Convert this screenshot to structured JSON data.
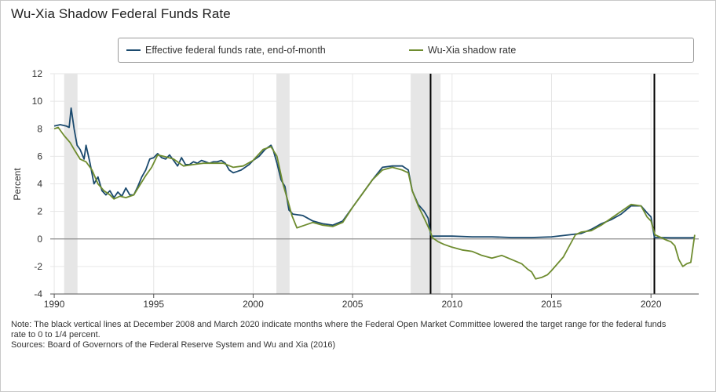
{
  "title": "Wu-Xia Shadow Federal Funds Rate",
  "colors": {
    "effr": "#1b4a6e",
    "shadow": "#6e8c2f",
    "recession": "#e6e6e6",
    "event_line": "#000000",
    "grid": "#e6e6e6",
    "zero_line": "#8c8c8c"
  },
  "notes": {
    "line1": "Note: The black vertical lines at December 2008 and March 2020 indicate months where the Federal Open Market Committee lowered the target range for the federal funds",
    "line2": "rate to 0 to 1/4 percent.",
    "line3": "Sources: Board of Governors of the Federal Reserve System and Wu and Xia (2016)"
  },
  "chart_data": {
    "type": "line",
    "ylabel": "Percent",
    "xlim": [
      1989.8,
      2022.4
    ],
    "ylim": [
      -4,
      12
    ],
    "x_ticks": [
      1990,
      1995,
      2000,
      2005,
      2010,
      2015,
      2020
    ],
    "x_tick_labels": [
      "1990",
      "1995",
      "2000",
      "2005",
      "2010",
      "2015",
      "2020"
    ],
    "y_ticks": [
      -4,
      -2,
      0,
      2,
      4,
      6,
      8,
      10,
      12
    ],
    "y_tick_labels": [
      "-4",
      "-2",
      "0",
      "2",
      "4",
      "6",
      "8",
      "10",
      "12"
    ],
    "grid": true,
    "legend_position": "top",
    "recessions": [
      [
        1990.5,
        1991.17
      ],
      [
        2001.17,
        2001.83
      ],
      [
        2007.92,
        2009.42
      ]
    ],
    "event_lines": [
      2008.92,
      2020.17
    ],
    "series": [
      {
        "name": "Effective federal funds rate, end-of-month",
        "x": [
          1990.0,
          1990.3,
          1990.6,
          1990.75,
          1990.85,
          1991.0,
          1991.15,
          1991.3,
          1991.5,
          1991.6,
          1991.8,
          1992.0,
          1992.2,
          1992.4,
          1992.6,
          1992.8,
          1993.0,
          1993.2,
          1993.4,
          1993.6,
          1993.8,
          1994.0,
          1994.2,
          1994.4,
          1994.6,
          1994.8,
          1995.0,
          1995.2,
          1995.4,
          1995.6,
          1995.8,
          1996.0,
          1996.2,
          1996.4,
          1996.6,
          1996.8,
          1997.0,
          1997.2,
          1997.4,
          1997.6,
          1997.8,
          1998.0,
          1998.2,
          1998.4,
          1998.6,
          1998.8,
          1999.0,
          1999.2,
          1999.4,
          1999.6,
          1999.8,
          2000.0,
          2000.3,
          2000.6,
          2000.9,
          2001.0,
          2001.2,
          2001.4,
          2001.6,
          2001.8,
          2002.0,
          2002.5,
          2003.0,
          2003.5,
          2004.0,
          2004.5,
          2005.0,
          2005.5,
          2006.0,
          2006.5,
          2007.0,
          2007.5,
          2007.8,
          2008.0,
          2008.3,
          2008.6,
          2008.8,
          2008.92,
          2009.0,
          2009.5,
          2010.0,
          2011.0,
          2012.0,
          2013.0,
          2014.0,
          2015.0,
          2015.9,
          2016.5,
          2017.0,
          2017.5,
          2018.0,
          2018.5,
          2019.0,
          2019.5,
          2019.8,
          2020.0,
          2020.17,
          2020.5,
          2021.0,
          2021.5,
          2022.0,
          2022.2
        ],
        "values": [
          8.2,
          8.3,
          8.2,
          8.1,
          9.5,
          8.0,
          6.8,
          6.5,
          5.8,
          6.8,
          5.5,
          4.0,
          4.5,
          3.5,
          3.2,
          3.5,
          3.0,
          3.4,
          3.1,
          3.7,
          3.2,
          3.2,
          3.8,
          4.5,
          5.0,
          5.8,
          5.9,
          6.2,
          5.9,
          5.8,
          6.1,
          5.7,
          5.3,
          5.9,
          5.4,
          5.4,
          5.6,
          5.5,
          5.7,
          5.6,
          5.5,
          5.6,
          5.6,
          5.7,
          5.5,
          5.0,
          4.8,
          4.9,
          5.0,
          5.2,
          5.4,
          5.7,
          6.0,
          6.5,
          6.8,
          6.5,
          5.5,
          4.3,
          3.8,
          2.1,
          1.8,
          1.7,
          1.3,
          1.1,
          1.0,
          1.3,
          2.3,
          3.3,
          4.3,
          5.2,
          5.3,
          5.3,
          5.0,
          3.5,
          2.5,
          2.0,
          1.5,
          0.3,
          0.2,
          0.2,
          0.2,
          0.15,
          0.15,
          0.1,
          0.1,
          0.15,
          0.3,
          0.4,
          0.7,
          1.1,
          1.4,
          1.8,
          2.4,
          2.4,
          1.9,
          1.6,
          0.1,
          0.1,
          0.08,
          0.08,
          0.08,
          0.1
        ]
      },
      {
        "name": "Wu-Xia shadow rate",
        "x": [
          1990.0,
          1990.2,
          1990.5,
          1990.8,
          1991.0,
          1991.3,
          1991.6,
          1991.9,
          1992.2,
          1992.5,
          1992.8,
          1993.0,
          1993.3,
          1993.6,
          1994.0,
          1994.3,
          1994.6,
          1994.9,
          1995.2,
          1995.5,
          1996.0,
          1996.5,
          1997.0,
          1997.5,
          1998.0,
          1998.5,
          1999.0,
          1999.5,
          2000.0,
          2000.5,
          2000.9,
          2001.2,
          2001.5,
          2001.8,
          2001.95,
          2002.2,
          2002.6,
          2003.0,
          2003.5,
          2004.0,
          2004.5,
          2005.0,
          2005.5,
          2006.0,
          2006.5,
          2007.0,
          2007.5,
          2007.8,
          2008.0,
          2008.3,
          2008.6,
          2008.92,
          2009.0,
          2009.3,
          2009.6,
          2010.0,
          2010.5,
          2011.0,
          2011.5,
          2012.0,
          2012.5,
          2013.0,
          2013.5,
          2013.8,
          2014.0,
          2014.2,
          2014.5,
          2014.8,
          2015.0,
          2015.3,
          2015.6,
          2015.9,
          2016.2,
          2016.5,
          2017.0,
          2017.5,
          2018.0,
          2018.5,
          2019.0,
          2019.5,
          2019.8,
          2020.0,
          2020.2,
          2020.5,
          2020.8,
          2021.0,
          2021.2,
          2021.4,
          2021.6,
          2021.8,
          2022.0,
          2022.2
        ],
        "values": [
          8.0,
          8.1,
          7.5,
          7.0,
          6.5,
          5.8,
          5.6,
          5.0,
          4.0,
          3.5,
          3.2,
          2.9,
          3.1,
          3.0,
          3.2,
          3.9,
          4.6,
          5.2,
          6.1,
          6.0,
          5.8,
          5.3,
          5.4,
          5.5,
          5.5,
          5.5,
          5.2,
          5.3,
          5.7,
          6.5,
          6.7,
          6.0,
          4.0,
          2.5,
          1.7,
          0.8,
          1.0,
          1.2,
          1.0,
          0.9,
          1.2,
          2.3,
          3.3,
          4.3,
          5.0,
          5.2,
          5.0,
          4.8,
          3.5,
          2.4,
          1.5,
          0.5,
          0.1,
          -0.2,
          -0.4,
          -0.6,
          -0.8,
          -0.9,
          -1.2,
          -1.4,
          -1.2,
          -1.5,
          -1.8,
          -2.2,
          -2.4,
          -2.9,
          -2.8,
          -2.6,
          -2.3,
          -1.8,
          -1.3,
          -0.5,
          0.3,
          0.5,
          0.6,
          1.0,
          1.5,
          2.0,
          2.5,
          2.4,
          1.6,
          1.3,
          0.3,
          0.1,
          -0.1,
          -0.2,
          -0.5,
          -1.5,
          -2.0,
          -1.8,
          -1.7,
          0.3
        ]
      }
    ]
  }
}
